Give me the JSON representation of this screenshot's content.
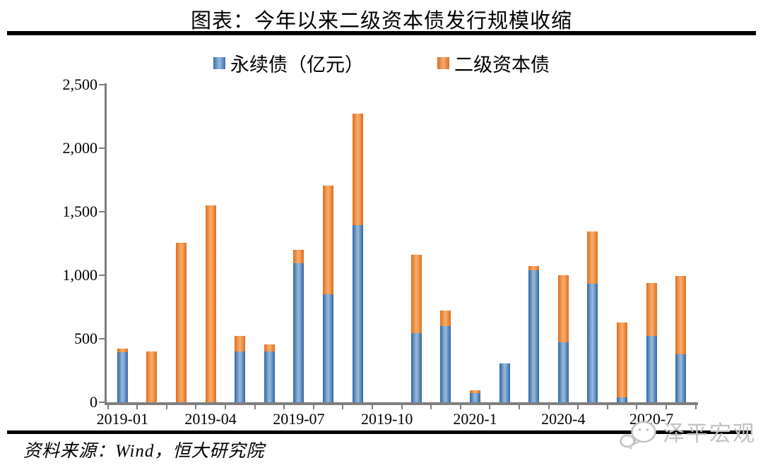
{
  "title": "图表：今年以来二级资本债发行规模收缩",
  "legend": {
    "items": [
      {
        "label": "永续债（亿元）",
        "color": "#4e81bd"
      },
      {
        "label": "二级资本债",
        "color": "#ed7d31"
      }
    ]
  },
  "source_note": "资料来源：Wind，恒大研究院",
  "watermark": {
    "icon": "wechat-chat-bubbles-icon",
    "text": "泽平宏观",
    "color": "#c2c2c2"
  },
  "axis_color": "#7f7f7f",
  "chart_data": {
    "type": "bar",
    "stacked": true,
    "title": "图表：今年以来二级资本债发行规模收缩",
    "categories": [
      "2019-01",
      "2019-02",
      "2019-03",
      "2019-04",
      "2019-05",
      "2019-06",
      "2019-07",
      "2019-08",
      "2019-09",
      "2019-10",
      "2019-11",
      "2019-12",
      "2020-1",
      "2020-2",
      "2020-3",
      "2020-4",
      "2020-5",
      "2020-6",
      "2020-7",
      "2020-8"
    ],
    "series": [
      {
        "name": "永续债（亿元）",
        "color": "#4e81bd",
        "values": [
          395,
          0,
          0,
          0,
          400,
          400,
          1095,
          850,
          1395,
          0,
          545,
          600,
          70,
          305,
          1040,
          470,
          935,
          40,
          520,
          380
        ]
      },
      {
        "name": "二级资本债",
        "color": "#ed7d31",
        "values": [
          25,
          400,
          1255,
          1550,
          125,
          55,
          105,
          855,
          880,
          0,
          615,
          125,
          25,
          0,
          35,
          530,
          410,
          590,
          420,
          615
        ]
      }
    ],
    "ylim": [
      0,
      2500
    ],
    "y_ticks": [
      0,
      500,
      1000,
      1500,
      2000,
      2500
    ],
    "y_tick_labels": [
      "0",
      "500",
      "1,000",
      "1,500",
      "2,000",
      "2,500"
    ],
    "x_tick_label_indices": [
      0,
      3,
      6,
      9,
      12,
      15,
      18
    ],
    "x_tick_labels": [
      "2019-01",
      "2019-04",
      "2019-07",
      "2019-10",
      "2020-1",
      "2020-4",
      "2020-7"
    ],
    "grid": false,
    "legend_position": "top"
  }
}
